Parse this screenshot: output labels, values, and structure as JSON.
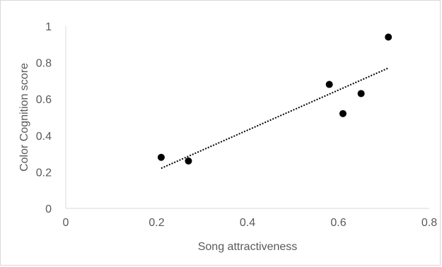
{
  "chart_data": {
    "type": "scatter",
    "xlabel": "Song attractiveness",
    "ylabel": "Color Cognition score",
    "xlim": [
      0,
      0.8
    ],
    "ylim": [
      0,
      1
    ],
    "x_ticks": [
      0,
      0.2,
      0.4,
      0.6,
      0.8
    ],
    "x_tick_labels": [
      "0",
      "0.2",
      "0.4",
      "0.6",
      "0.8"
    ],
    "y_ticks": [
      0,
      0.2,
      0.4,
      0.6,
      0.8,
      1
    ],
    "y_tick_labels": [
      "0",
      "0.2",
      "0.4",
      "0.6",
      "0.8",
      "1"
    ],
    "grid": false,
    "legend": "none",
    "points": [
      {
        "x": 0.21,
        "y": 0.28
      },
      {
        "x": 0.27,
        "y": 0.26
      },
      {
        "x": 0.58,
        "y": 0.68
      },
      {
        "x": 0.61,
        "y": 0.52
      },
      {
        "x": 0.65,
        "y": 0.63
      },
      {
        "x": 0.71,
        "y": 0.94
      }
    ],
    "trendline": {
      "type": "linear",
      "style": "dotted",
      "x": [
        0.21,
        0.71
      ],
      "y": [
        0.22,
        0.77
      ]
    },
    "colors": {
      "marker": "#000000",
      "trendline": "#000000",
      "axis": "#d9d9d9",
      "text": "#595959"
    }
  }
}
